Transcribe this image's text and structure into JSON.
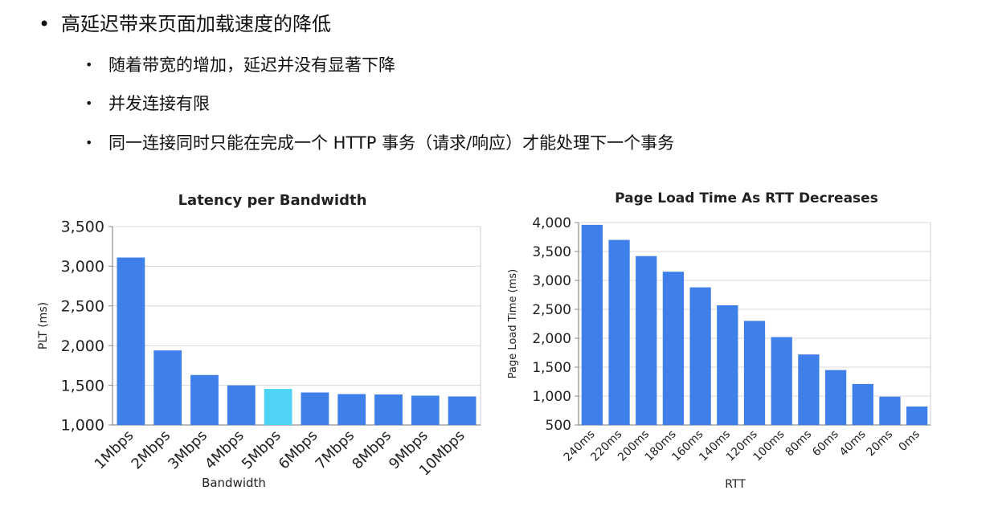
{
  "bullets": {
    "main": "高延迟带来页面加载速度的降低",
    "sub": [
      "随着带宽的增加，延迟并没有显著下降",
      "并发连接有限",
      "同一连接同时只能在完成一个 HTTP 事务（请求/响应）才能处理下一个事务"
    ]
  },
  "chart_data": [
    {
      "type": "bar",
      "title": "Latency per Bandwidth",
      "xlabel": "Bandwidth",
      "ylabel": "PLT (ms)",
      "categories": [
        "1Mbps",
        "2Mbps",
        "3Mbps",
        "4Mbps",
        "5Mbps",
        "6Mbps",
        "7Mbps",
        "8Mbps",
        "9Mbps",
        "10Mbps"
      ],
      "values": [
        3110,
        1940,
        1630,
        1500,
        1455,
        1410,
        1390,
        1385,
        1370,
        1360
      ],
      "highlight_index": 4,
      "ylim": [
        1000,
        3500
      ],
      "yticks": [
        1000,
        1500,
        2000,
        2500,
        3000,
        3500
      ],
      "ytick_labels": [
        "1,000",
        "1,500",
        "2,000",
        "2,500",
        "3,000",
        "3,500"
      ],
      "grid": true,
      "colors": {
        "bar": "#3f7fea",
        "highlight": "#4fd3f7",
        "grid": "#d9d9d9"
      }
    },
    {
      "type": "bar",
      "title": "Page Load Time As RTT Decreases",
      "xlabel": "RTT",
      "ylabel": "Page Load Time (ms)",
      "categories": [
        "240ms",
        "220ms",
        "200ms",
        "180ms",
        "160ms",
        "140ms",
        "120ms",
        "100ms",
        "80ms",
        "60ms",
        "40ms",
        "20ms",
        "0ms"
      ],
      "values": [
        3960,
        3700,
        3420,
        3150,
        2880,
        2570,
        2300,
        2020,
        1720,
        1450,
        1210,
        990,
        820
      ],
      "ylim": [
        500,
        4000
      ],
      "yticks": [
        500,
        1000,
        1500,
        2000,
        2500,
        3000,
        3500,
        4000
      ],
      "ytick_labels": [
        "500",
        "1,000",
        "1,500",
        "2,000",
        "2,500",
        "3,000",
        "3,500",
        "4,000"
      ],
      "grid": true,
      "colors": {
        "bar": "#3f7fea",
        "grid": "#d9d9d9"
      }
    }
  ]
}
